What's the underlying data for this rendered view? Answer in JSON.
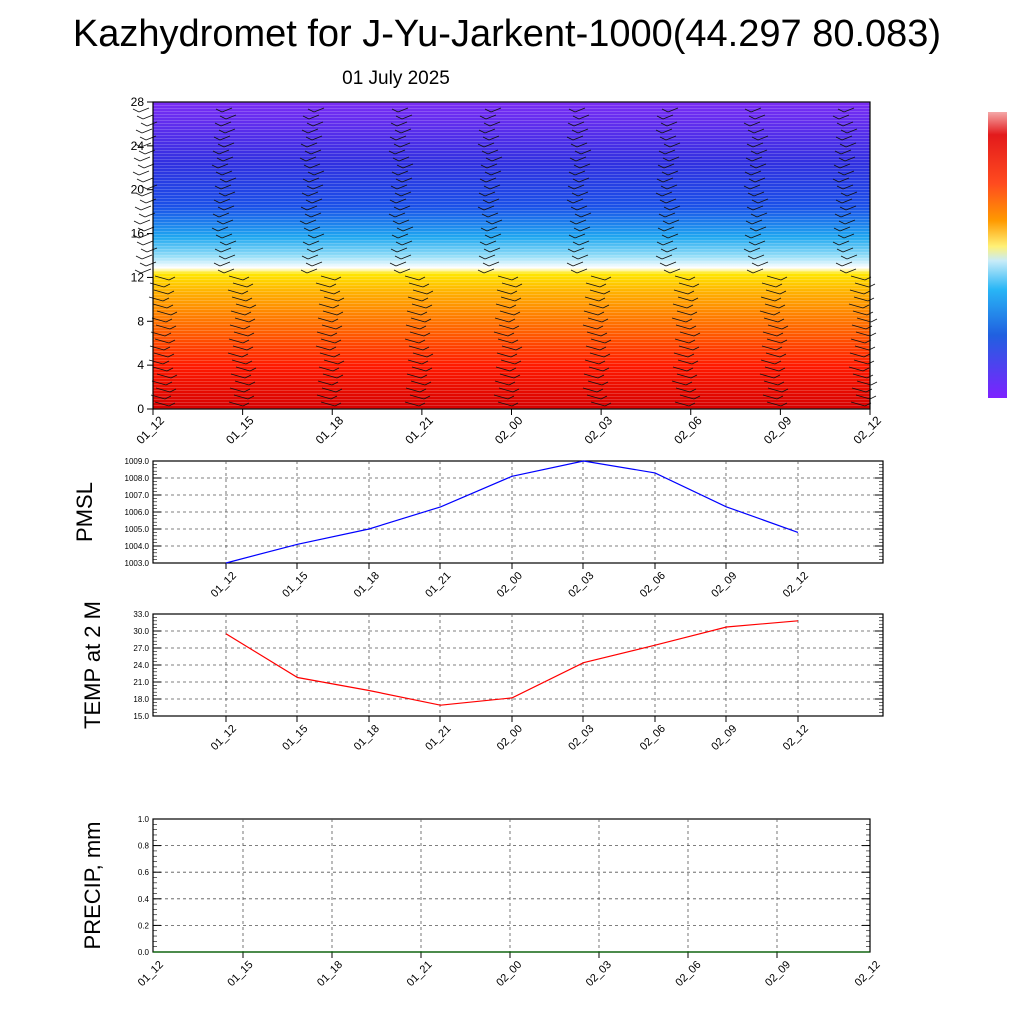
{
  "header": {
    "title": "Kazhydromet for J-Yu-Jarkent-1000(44.297 80.083)",
    "date": "01 July 2025"
  },
  "time_labels": [
    "01_12",
    "01_15",
    "01_18",
    "01_21",
    "02_00",
    "02_03",
    "02_06",
    "02_09",
    "02_12"
  ],
  "colors": {
    "pmsl_line": "#0000ff",
    "temp_line": "#ff0000",
    "precip_line": "#006400",
    "colorbar": [
      "#e41a1c",
      "#ff3b1f",
      "#ff6a00",
      "#ff9a00",
      "#ffc400",
      "#fff176",
      "#bde9f7",
      "#29b6f6",
      "#1e6fe0",
      "#3f3be0",
      "#7e22ff"
    ]
  },
  "chart_data": [
    {
      "type": "heatmap",
      "description_field": "cross-section",
      "x": [
        "01_12",
        "01_15",
        "01_18",
        "01_21",
        "02_00",
        "02_03",
        "02_06",
        "02_09",
        "02_12"
      ],
      "yticks": [
        0,
        4,
        8,
        12,
        16,
        20,
        24,
        28
      ],
      "ylim": [
        0,
        28
      ],
      "xlabel": "",
      "ylabel": ""
    },
    {
      "type": "line",
      "ylabel": "PMSL",
      "x": [
        "01_12",
        "01_15",
        "01_18",
        "01_21",
        "02_00",
        "02_03",
        "02_06",
        "02_09",
        "02_12"
      ],
      "values": [
        1003.0,
        1004.1,
        1005.0,
        1006.3,
        1008.1,
        1009.0,
        1008.3,
        1006.3,
        1004.8
      ],
      "ylim": [
        1003.0,
        1009.0
      ],
      "yticks": [
        "1003.0",
        "1004.0",
        "1005.0",
        "1006.0",
        "1007.0",
        "1008.0",
        "1009.0"
      ],
      "grid": true
    },
    {
      "type": "line",
      "ylabel": "TEMP at 2 M",
      "x": [
        "01_12",
        "01_15",
        "01_18",
        "01_21",
        "02_00",
        "02_03",
        "02_06",
        "02_09",
        "02_12"
      ],
      "values": [
        29.5,
        21.8,
        19.5,
        16.9,
        18.2,
        24.4,
        27.5,
        30.7,
        31.8
      ],
      "ylim": [
        15.0,
        33.0
      ],
      "yticks": [
        "15.0",
        "18.0",
        "21.0",
        "24.0",
        "27.0",
        "30.0",
        "33.0"
      ],
      "grid": true
    },
    {
      "type": "line",
      "ylabel": "PRECIP, mm",
      "x": [
        "01_12",
        "01_15",
        "01_18",
        "01_21",
        "02_00",
        "02_03",
        "02_06",
        "02_09",
        "02_12"
      ],
      "values": [
        0,
        0,
        0,
        0,
        0,
        0,
        0,
        0,
        0
      ],
      "ylim": [
        0.0,
        1.0
      ],
      "yticks": [
        "0.0",
        "0.2",
        "0.4",
        "0.6",
        "0.8",
        "1.0"
      ],
      "grid": true
    }
  ]
}
